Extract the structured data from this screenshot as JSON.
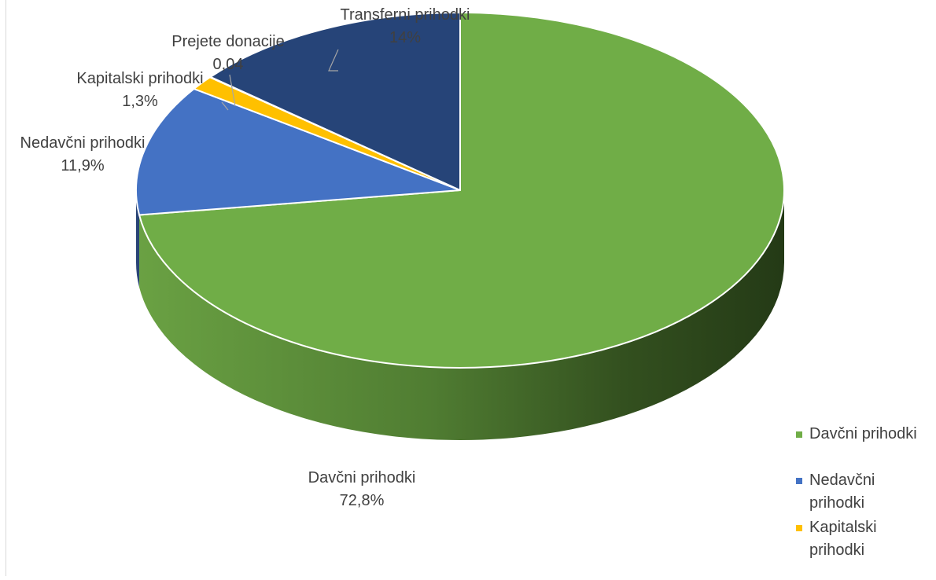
{
  "chart_data": {
    "type": "pie",
    "title": "",
    "three_d": true,
    "categories": [
      "Davčni prihodki",
      "Nedavčni prihodki",
      "Kapitalski prihodki",
      "Prejete donacije",
      "Transferni prihodki"
    ],
    "values": [
      72.8,
      11.9,
      1.3,
      0.04,
      14
    ],
    "data_labels": [
      {
        "name": "Davčni prihodki",
        "value": "72,8%"
      },
      {
        "name": "Nedavčni prihodki",
        "value": "11,9%"
      },
      {
        "name": "Kapitalski prihodki",
        "value": "1,3%"
      },
      {
        "name": "Prejete donacije",
        "value": "0,04"
      },
      {
        "name": "Transferni prihodki",
        "value": "14%"
      }
    ],
    "colors": {
      "Davčni prihodki": "#70AD47",
      "Nedavčni prihodki": "#4472C4",
      "Kapitalski prihodki": "#FFC000",
      "Prejete donacije": "#A5A5A5",
      "Transferni prihodki": "#264478"
    },
    "legend": {
      "position": "right-bottom",
      "items": [
        {
          "label": "Davčni prihodki",
          "color": "#70AD47"
        },
        {
          "label": "Nedavčni prihodki",
          "color": "#4472C4"
        },
        {
          "label": "Kapitalski prihodki",
          "color": "#FFC000"
        }
      ]
    }
  }
}
